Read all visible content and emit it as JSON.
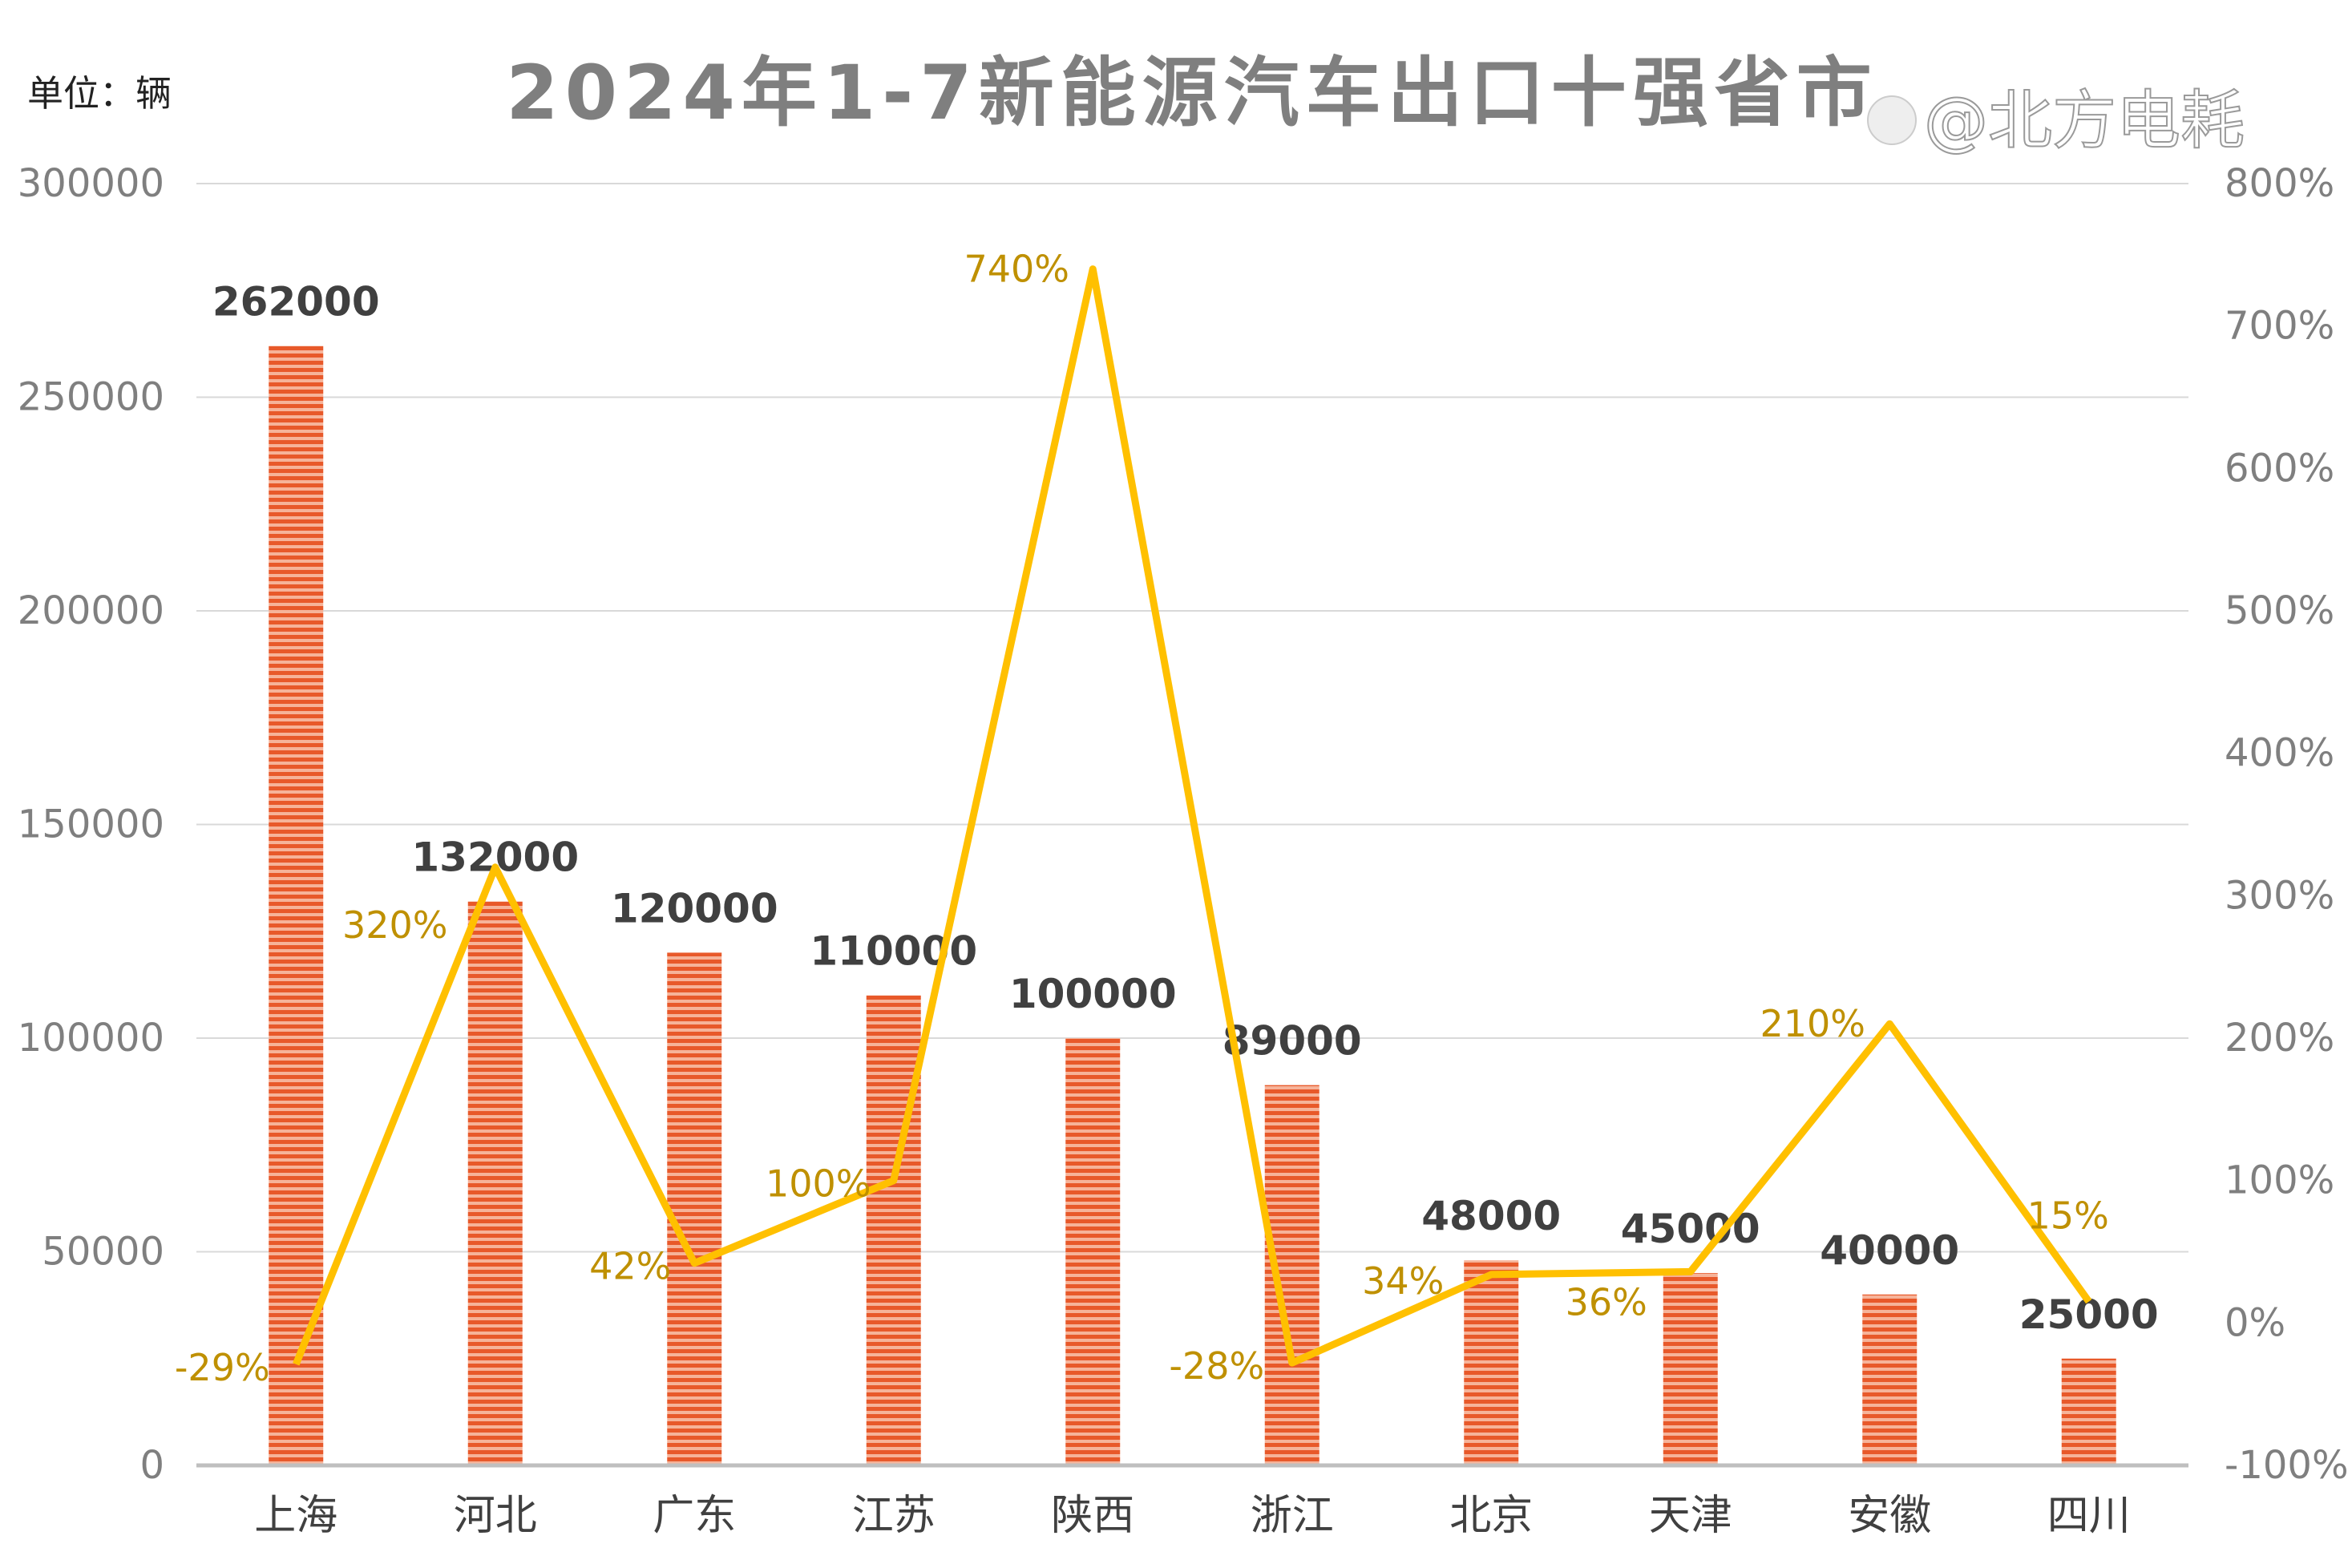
{
  "chart_data": {
    "type": "bar+line",
    "title": "2024年1-7新能源汽车出口十强省市",
    "unit_label": "单位：辆",
    "categories": [
      "上海",
      "河北",
      "广东",
      "江苏",
      "陕西",
      "浙江",
      "北京",
      "天津",
      "安徽",
      "四川"
    ],
    "series": [
      {
        "type": "bar",
        "axis": "left",
        "values": [
          262000,
          132000,
          120000,
          110000,
          100000,
          89000,
          48000,
          45000,
          40000,
          25000
        ],
        "labels": [
          "262000",
          "132000",
          "120000",
          "110000",
          "100000",
          "89000",
          "48000",
          "45000",
          "40000",
          "25000"
        ],
        "color": "#e8592a"
      },
      {
        "type": "line",
        "axis": "right",
        "values": [
          -29,
          320,
          42,
          100,
          740,
          -28,
          34,
          36,
          210,
          15
        ],
        "labels": [
          "-29%",
          "320%",
          "42%",
          "100%",
          "740%",
          "-28%",
          "34%",
          "36%",
          "210%",
          "15%"
        ],
        "color": "#ffc000"
      }
    ],
    "y_left": {
      "range": [
        0,
        300000
      ],
      "ticks": [
        "0",
        "50000",
        "100000",
        "150000",
        "200000",
        "250000",
        "300000"
      ]
    },
    "y_right": {
      "range": [
        -100,
        800
      ],
      "ticks": [
        "-100%",
        "0%",
        "100%",
        "200%",
        "300%",
        "400%",
        "500%",
        "600%",
        "700%",
        "800%"
      ]
    },
    "grid": true,
    "label_color_pct": "#bf9000",
    "watermark": "@北方电耗"
  }
}
